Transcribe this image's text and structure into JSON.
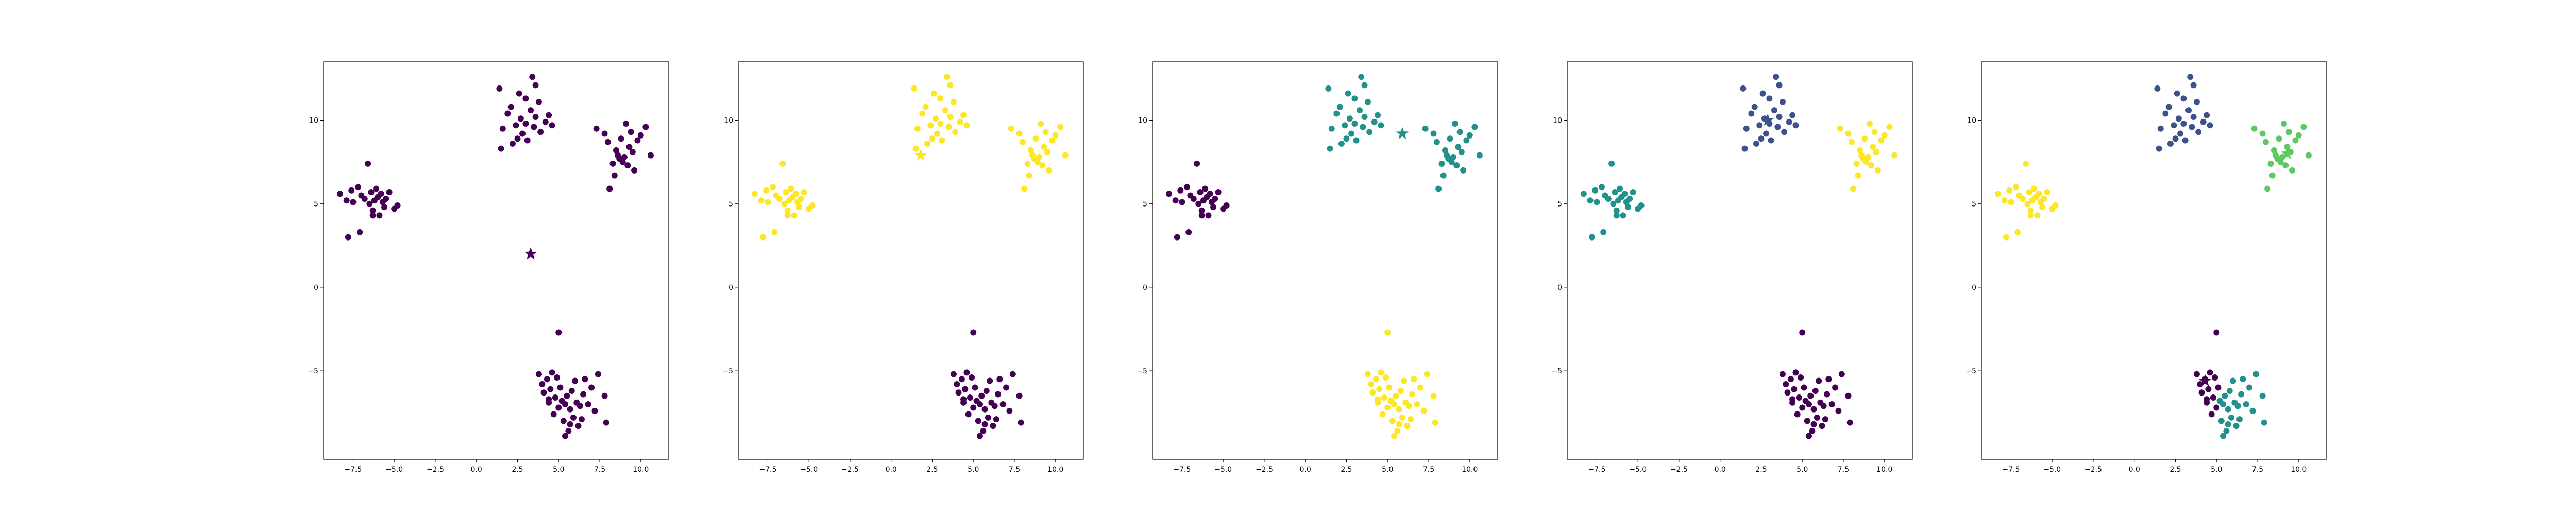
{
  "chart_data": {
    "type": "scatter",
    "layout": "1x5 subplots",
    "xlim": [
      -9.3,
      11.7
    ],
    "ylim": [
      -10.3,
      13.5
    ],
    "xticks": [
      -7.5,
      -5.0,
      -2.5,
      0.0,
      2.5,
      5.0,
      7.5,
      10.0
    ],
    "yticks": [
      -5,
      0,
      5,
      10
    ],
    "xtick_labels": [
      "−7.5",
      "−5.0",
      "−2.5",
      "0.0",
      "2.5",
      "5.0",
      "7.5",
      "10.0"
    ],
    "ytick_labels": [
      "−5",
      "0",
      "5",
      "10"
    ],
    "grid": false,
    "legend": "none",
    "colors": {
      "k1": "#440154",
      "k2": "#fde725",
      "k3": "#21918c",
      "k4": "#3b528b",
      "k5": "#5ec962",
      "alt": "#21918c"
    },
    "clusters": [
      {
        "name": "left",
        "points": [
          [
            -8.3,
            5.6
          ],
          [
            -7.9,
            5.2
          ],
          [
            -7.6,
            5.8
          ],
          [
            -7.5,
            5.1
          ],
          [
            -7.2,
            6.0
          ],
          [
            -7.0,
            5.5
          ],
          [
            -6.8,
            5.3
          ],
          [
            -6.6,
            7.4
          ],
          [
            -6.5,
            5.0
          ],
          [
            -6.4,
            5.7
          ],
          [
            -6.3,
            4.6
          ],
          [
            -6.2,
            5.2
          ],
          [
            -6.1,
            5.9
          ],
          [
            -6.0,
            5.4
          ],
          [
            -5.9,
            4.3
          ],
          [
            -5.8,
            5.6
          ],
          [
            -5.7,
            5.1
          ],
          [
            -5.6,
            4.8
          ],
          [
            -5.5,
            5.3
          ],
          [
            -5.3,
            5.7
          ],
          [
            -5.0,
            4.7
          ],
          [
            -4.8,
            4.9
          ],
          [
            -7.8,
            3.0
          ],
          [
            -7.1,
            3.3
          ],
          [
            -6.3,
            4.3
          ]
        ]
      },
      {
        "name": "top",
        "points": [
          [
            1.4,
            11.9
          ],
          [
            1.5,
            8.3
          ],
          [
            1.6,
            9.5
          ],
          [
            1.9,
            10.4
          ],
          [
            2.1,
            10.8
          ],
          [
            2.2,
            8.6
          ],
          [
            2.4,
            9.7
          ],
          [
            2.5,
            8.9
          ],
          [
            2.7,
            10.1
          ],
          [
            2.8,
            9.2
          ],
          [
            3.0,
            11.3
          ],
          [
            3.0,
            9.8
          ],
          [
            3.1,
            8.8
          ],
          [
            3.3,
            10.6
          ],
          [
            3.4,
            12.6
          ],
          [
            3.5,
            9.6
          ],
          [
            3.6,
            10.2
          ],
          [
            3.8,
            11.1
          ],
          [
            3.9,
            9.3
          ],
          [
            4.2,
            9.9
          ],
          [
            4.4,
            10.3
          ],
          [
            4.6,
            9.7
          ],
          [
            2.6,
            11.6
          ],
          [
            3.6,
            12.1
          ]
        ]
      },
      {
        "name": "right",
        "points": [
          [
            7.3,
            9.5
          ],
          [
            7.8,
            9.2
          ],
          [
            8.0,
            8.7
          ],
          [
            8.1,
            5.9
          ],
          [
            8.3,
            7.4
          ],
          [
            8.4,
            6.7
          ],
          [
            8.5,
            8.2
          ],
          [
            8.6,
            7.9
          ],
          [
            8.7,
            7.7
          ],
          [
            8.8,
            8.9
          ],
          [
            8.9,
            7.5
          ],
          [
            9.0,
            7.8
          ],
          [
            9.1,
            9.8
          ],
          [
            9.2,
            7.3
          ],
          [
            9.3,
            8.4
          ],
          [
            9.5,
            8.1
          ],
          [
            9.6,
            7.0
          ],
          [
            9.8,
            8.8
          ],
          [
            10.0,
            9.1
          ],
          [
            10.3,
            9.6
          ],
          [
            10.6,
            7.9
          ],
          [
            9.4,
            9.3
          ]
        ]
      },
      {
        "name": "bottom",
        "points": [
          [
            3.8,
            -5.2
          ],
          [
            4.0,
            -5.8
          ],
          [
            4.1,
            -6.3
          ],
          [
            4.3,
            -5.5
          ],
          [
            4.4,
            -6.9
          ],
          [
            4.5,
            -6.1
          ],
          [
            4.6,
            -5.1
          ],
          [
            4.7,
            -7.6
          ],
          [
            4.8,
            -6.6
          ],
          [
            4.9,
            -5.4
          ],
          [
            5.0,
            -2.7
          ],
          [
            5.0,
            -7.2
          ],
          [
            5.1,
            -6.0
          ],
          [
            5.2,
            -6.8
          ],
          [
            5.3,
            -8.0
          ],
          [
            5.4,
            -7.0
          ],
          [
            5.5,
            -6.5
          ],
          [
            5.6,
            -8.6
          ],
          [
            5.7,
            -7.3
          ],
          [
            5.8,
            -6.2
          ],
          [
            5.9,
            -7.8
          ],
          [
            6.0,
            -5.6
          ],
          [
            6.1,
            -6.9
          ],
          [
            6.2,
            -8.3
          ],
          [
            6.3,
            -7.1
          ],
          [
            6.5,
            -6.4
          ],
          [
            6.6,
            -5.5
          ],
          [
            6.8,
            -7.0
          ],
          [
            7.0,
            -6.0
          ],
          [
            7.2,
            -7.4
          ],
          [
            7.4,
            -5.2
          ],
          [
            7.8,
            -6.5
          ],
          [
            7.9,
            -8.1
          ],
          [
            5.4,
            -8.9
          ],
          [
            5.7,
            -8.2
          ],
          [
            4.4,
            -6.7
          ],
          [
            6.4,
            -7.9
          ]
        ]
      }
    ],
    "subplots": [
      {
        "cluster_colors": [
          "k1",
          "k1",
          "k1",
          "k1"
        ],
        "bottom_split": false,
        "centers": [
          {
            "xy": [
              3.3,
              2.0
            ],
            "color": "k1"
          }
        ]
      },
      {
        "cluster_colors": [
          "k2",
          "k2",
          "k2",
          "k1"
        ],
        "bottom_split": false,
        "centers": [
          {
            "xy": [
              1.8,
              7.9
            ],
            "color": "k2"
          }
        ]
      },
      {
        "cluster_colors": [
          "k1",
          "k3",
          "k3",
          "k2"
        ],
        "bottom_split": false,
        "centers": [
          {
            "xy": [
              5.9,
              9.2
            ],
            "color": "k3"
          }
        ]
      },
      {
        "cluster_colors": [
          "k3",
          "k4",
          "k2",
          "k1"
        ],
        "bottom_split": false,
        "centers": [
          {
            "xy": [
              2.9,
              10.0
            ],
            "color": "k4"
          }
        ]
      },
      {
        "cluster_colors": [
          "k2",
          "k4",
          "k5",
          "k1"
        ],
        "bottom_split": true,
        "split_x": 5.2,
        "split_colors": [
          "k1",
          "alt"
        ],
        "centers": [
          {
            "xy": [
              4.3,
              -5.6
            ],
            "color": "k1"
          },
          {
            "xy": [
              9.3,
              8.0
            ],
            "color": "k5"
          }
        ]
      }
    ]
  }
}
